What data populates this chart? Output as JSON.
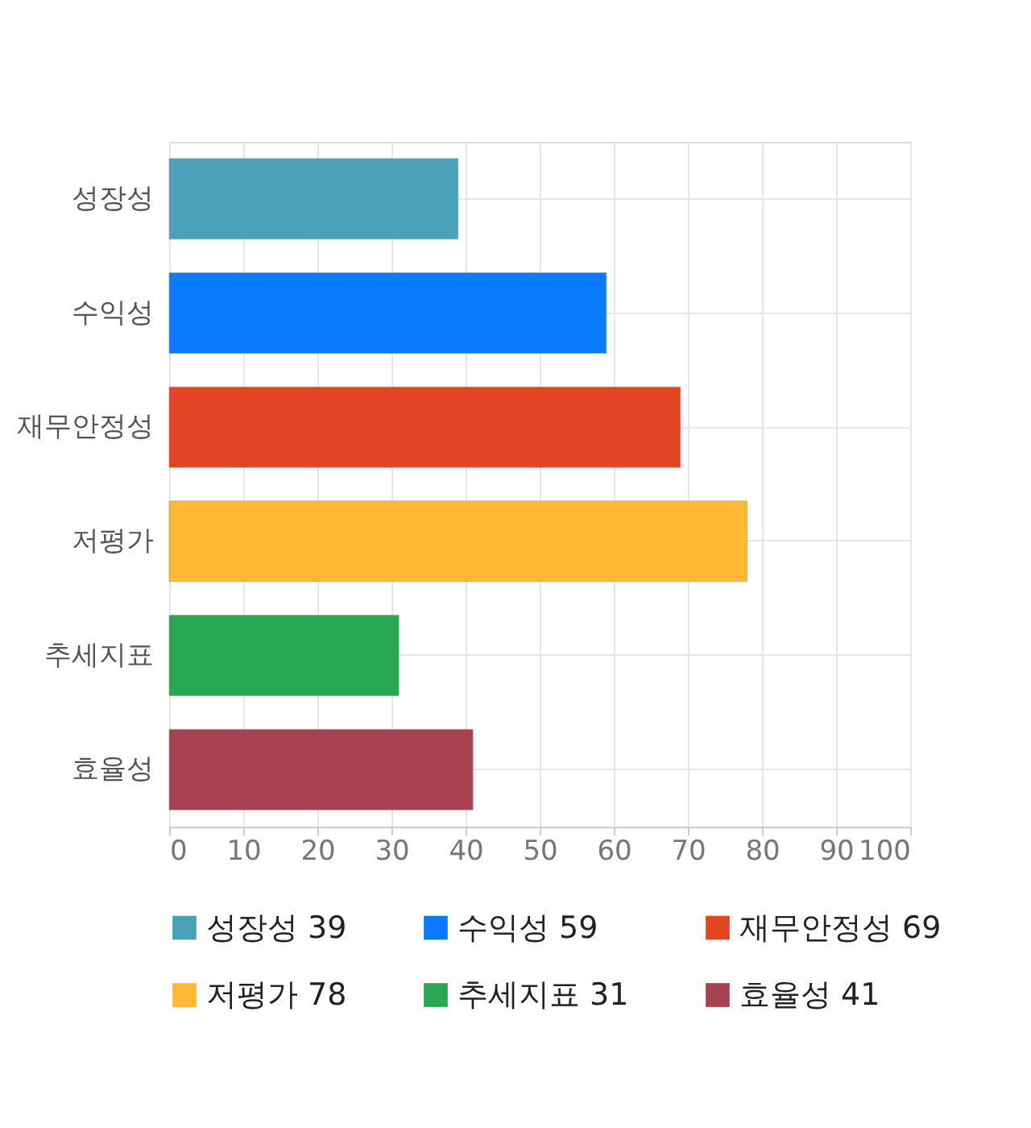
{
  "chart_data": {
    "type": "bar",
    "orientation": "horizontal",
    "categories": [
      "성장성",
      "수익성",
      "재무안정성",
      "저평가",
      "추세지표",
      "효율성"
    ],
    "series": [
      {
        "name": "성장성 39",
        "color": "#4aa1b9",
        "values": [
          39,
          null,
          null,
          null,
          null,
          null
        ]
      },
      {
        "name": "수익성 59",
        "color": "#0a7bff",
        "values": [
          null,
          59,
          null,
          null,
          null,
          null
        ]
      },
      {
        "name": "재무안정성 69",
        "color": "#e34424",
        "values": [
          null,
          null,
          69,
          null,
          null,
          null
        ]
      },
      {
        "name": "저평가 78",
        "color": "#ffb834",
        "values": [
          null,
          null,
          null,
          78,
          null,
          null
        ]
      },
      {
        "name": "추세지표 31",
        "color": "#29a854",
        "values": [
          null,
          null,
          null,
          null,
          31,
          null
        ]
      },
      {
        "name": "효율성 41",
        "color": "#a6414f",
        "values": [
          null,
          null,
          null,
          null,
          null,
          41
        ]
      }
    ],
    "xlim": [
      0,
      100
    ],
    "xticks": [
      0,
      10,
      20,
      30,
      40,
      50,
      60,
      70,
      80,
      90,
      100
    ],
    "grid": true,
    "legend": "bottom"
  }
}
